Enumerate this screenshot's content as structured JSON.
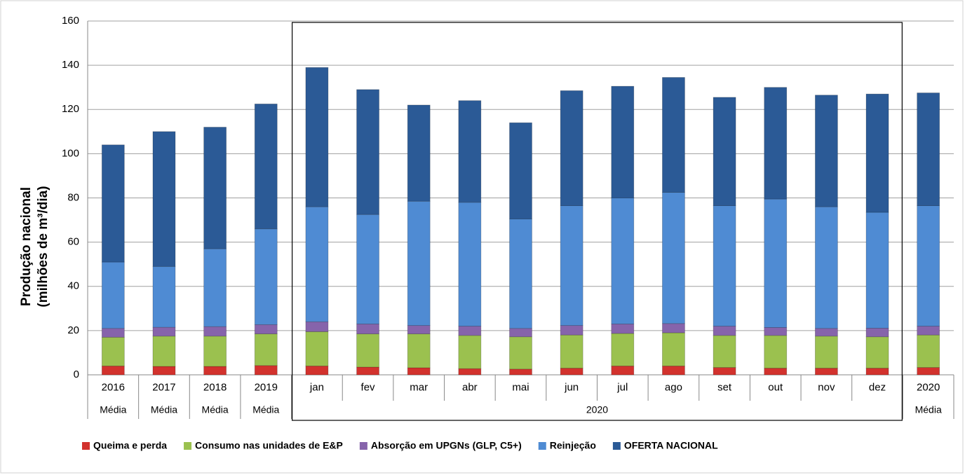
{
  "chart_data": {
    "type": "stacked_bar",
    "y_label": [
      "Produção nacional",
      "(milhões de m³/dia)"
    ],
    "groups": [
      {
        "label": "Média",
        "categories": [
          "2016"
        ]
      },
      {
        "label": "Média",
        "categories": [
          "2017"
        ]
      },
      {
        "label": "Média",
        "categories": [
          "2018"
        ]
      },
      {
        "label": "Média",
        "categories": [
          "2019"
        ]
      },
      {
        "label": "2020",
        "categories": [
          "jan",
          "fev",
          "mar",
          "abr",
          "mai",
          "jun",
          "jul",
          "ago",
          "set",
          "out",
          "nov",
          "dez"
        ]
      },
      {
        "label": "Média",
        "categories": [
          "2020"
        ]
      }
    ],
    "series": [
      {
        "name": "Queima e perda",
        "color": "#d2322d",
        "values": [
          4,
          3.8,
          3.8,
          4.2,
          4,
          3.5,
          3.2,
          2.8,
          2.6,
          3,
          4,
          4,
          3.3,
          3,
          3,
          3,
          3.3
        ]
      },
      {
        "name": "Consumo nas unidades de E&P",
        "color": "#9bc14f",
        "values": [
          13,
          13.7,
          13.7,
          14.3,
          15.5,
          15,
          15.3,
          15,
          14.6,
          15,
          14.7,
          15,
          14.5,
          14.8,
          14.5,
          14.2,
          14.7
        ]
      },
      {
        "name": "Absorção em UPGNs (GLP, C5+)",
        "color": "#8664ab",
        "values": [
          4,
          4,
          4.3,
          4.2,
          4.5,
          4.5,
          3.8,
          4.2,
          3.8,
          4.3,
          4.3,
          4.2,
          4.2,
          3.6,
          3.5,
          3.9,
          4
        ]
      },
      {
        "name": "Reinjeção",
        "color": "#4f8bd3",
        "values": [
          30,
          27.5,
          35.2,
          43.3,
          52,
          49.5,
          56.2,
          56,
          49.5,
          54.2,
          57,
          59.3,
          54.5,
          58.1,
          55,
          52.4,
          54.5
        ]
      },
      {
        "name": "OFERTA NACIONAL",
        "color": "#2b5a96",
        "values": [
          53,
          61,
          55,
          56.5,
          63,
          56.5,
          43.5,
          46,
          43.5,
          52,
          50.5,
          52,
          49,
          50.5,
          50.5,
          53.5,
          51
        ]
      }
    ],
    "ylim": [
      0,
      160
    ],
    "yticks": [
      0,
      20,
      40,
      60,
      80,
      100,
      120,
      140,
      160
    ],
    "grid": true,
    "legend": "bottom"
  }
}
